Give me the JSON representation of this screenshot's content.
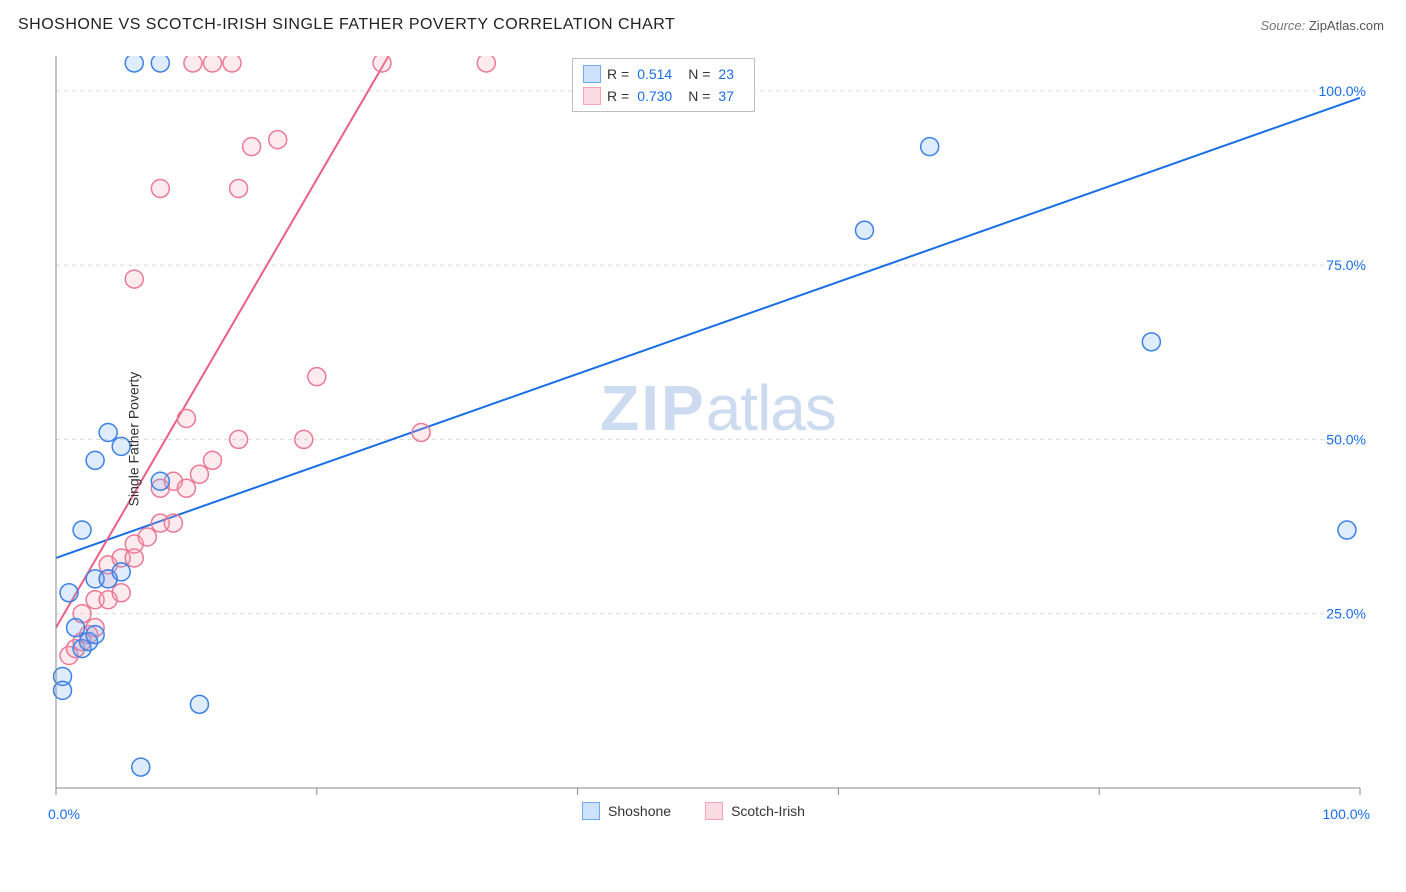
{
  "header": {
    "title": "SHOSHONE VS SCOTCH-IRISH SINGLE FATHER POVERTY CORRELATION CHART",
    "source_label": "Source: ",
    "source_name": "ZipAtlas.com"
  },
  "ylabel": "Single Father Poverty",
  "watermark": {
    "zip": "ZIP",
    "atlas": "atlas"
  },
  "chart": {
    "type": "scatter",
    "xlim": [
      0,
      100
    ],
    "ylim": [
      0,
      105
    ],
    "x_ticks": [
      0,
      100
    ],
    "x_tick_labels": [
      "0.0%",
      "100.0%"
    ],
    "x_minor_ticks": [
      20,
      40,
      60,
      80
    ],
    "y_ticks": [
      25,
      50,
      75,
      100
    ],
    "y_tick_labels": [
      "25.0%",
      "50.0%",
      "75.0%",
      "100.0%"
    ],
    "grid_color": "#d9d9d9",
    "axis_color": "#888888",
    "tick_color": "#888888",
    "background_color": "#ffffff",
    "marker_radius": 9,
    "marker_stroke_width": 1.5,
    "marker_fill_opacity": 0.22,
    "trend_line_width": 2,
    "series": [
      {
        "name": "Shoshone",
        "color": "#6fa8f5",
        "stroke": "#3b82e6",
        "line_color": "#1a6ee8",
        "r": "0.514",
        "n": "23",
        "trend": {
          "x1": 0,
          "y1": 33,
          "x2": 100,
          "y2": 99
        },
        "points": [
          [
            0.5,
            16
          ],
          [
            2,
            20
          ],
          [
            2.5,
            21
          ],
          [
            3,
            22
          ],
          [
            1,
            28
          ],
          [
            3,
            30
          ],
          [
            4,
            30
          ],
          [
            2,
            37
          ],
          [
            8,
            44
          ],
          [
            3,
            47
          ],
          [
            5,
            49
          ],
          [
            4,
            51
          ],
          [
            11,
            12
          ],
          [
            6.5,
            3
          ],
          [
            6,
            104
          ],
          [
            8,
            104
          ],
          [
            62,
            80
          ],
          [
            67,
            92
          ],
          [
            84,
            64
          ],
          [
            99,
            37
          ],
          [
            0.5,
            14
          ],
          [
            1.5,
            23
          ],
          [
            5,
            31
          ]
        ]
      },
      {
        "name": "Scotch-Irish",
        "color": "#f5a3b6",
        "stroke": "#ea7a96",
        "line_color": "#ea5f85",
        "r": "0.730",
        "n": "37",
        "trend": {
          "x1": 0,
          "y1": 23,
          "x2": 25.5,
          "y2": 105
        },
        "points": [
          [
            1,
            19
          ],
          [
            1.5,
            20
          ],
          [
            2,
            21
          ],
          [
            2.5,
            22
          ],
          [
            3,
            23
          ],
          [
            3,
            27
          ],
          [
            4,
            27
          ],
          [
            5,
            28
          ],
          [
            4,
            32
          ],
          [
            5,
            33
          ],
          [
            6,
            33
          ],
          [
            6,
            35
          ],
          [
            7,
            36
          ],
          [
            8,
            38
          ],
          [
            9,
            38
          ],
          [
            8,
            43
          ],
          [
            9,
            44
          ],
          [
            10,
            43
          ],
          [
            11,
            45
          ],
          [
            14,
            50
          ],
          [
            10,
            53
          ],
          [
            12,
            47
          ],
          [
            19,
            50
          ],
          [
            28,
            51
          ],
          [
            20,
            59
          ],
          [
            6,
            73
          ],
          [
            14,
            86
          ],
          [
            8,
            86
          ],
          [
            15,
            92
          ],
          [
            17,
            93
          ],
          [
            10.5,
            104
          ],
          [
            12,
            104
          ],
          [
            13.5,
            104
          ],
          [
            25,
            104
          ],
          [
            33,
            104
          ],
          [
            2,
            25
          ],
          [
            4,
            30
          ]
        ]
      }
    ]
  },
  "top_legend": {
    "r_label": "R =",
    "n_label": "N ="
  },
  "bottom_legend": {
    "items": [
      "Shoshone",
      "Scotch-Irish"
    ]
  },
  "swatch_colors": {
    "shoshone": {
      "fill": "#cfe2fb",
      "border": "#6fa8f5"
    },
    "scotch_irish": {
      "fill": "#fbdbe3",
      "border": "#f5a3b6"
    }
  }
}
